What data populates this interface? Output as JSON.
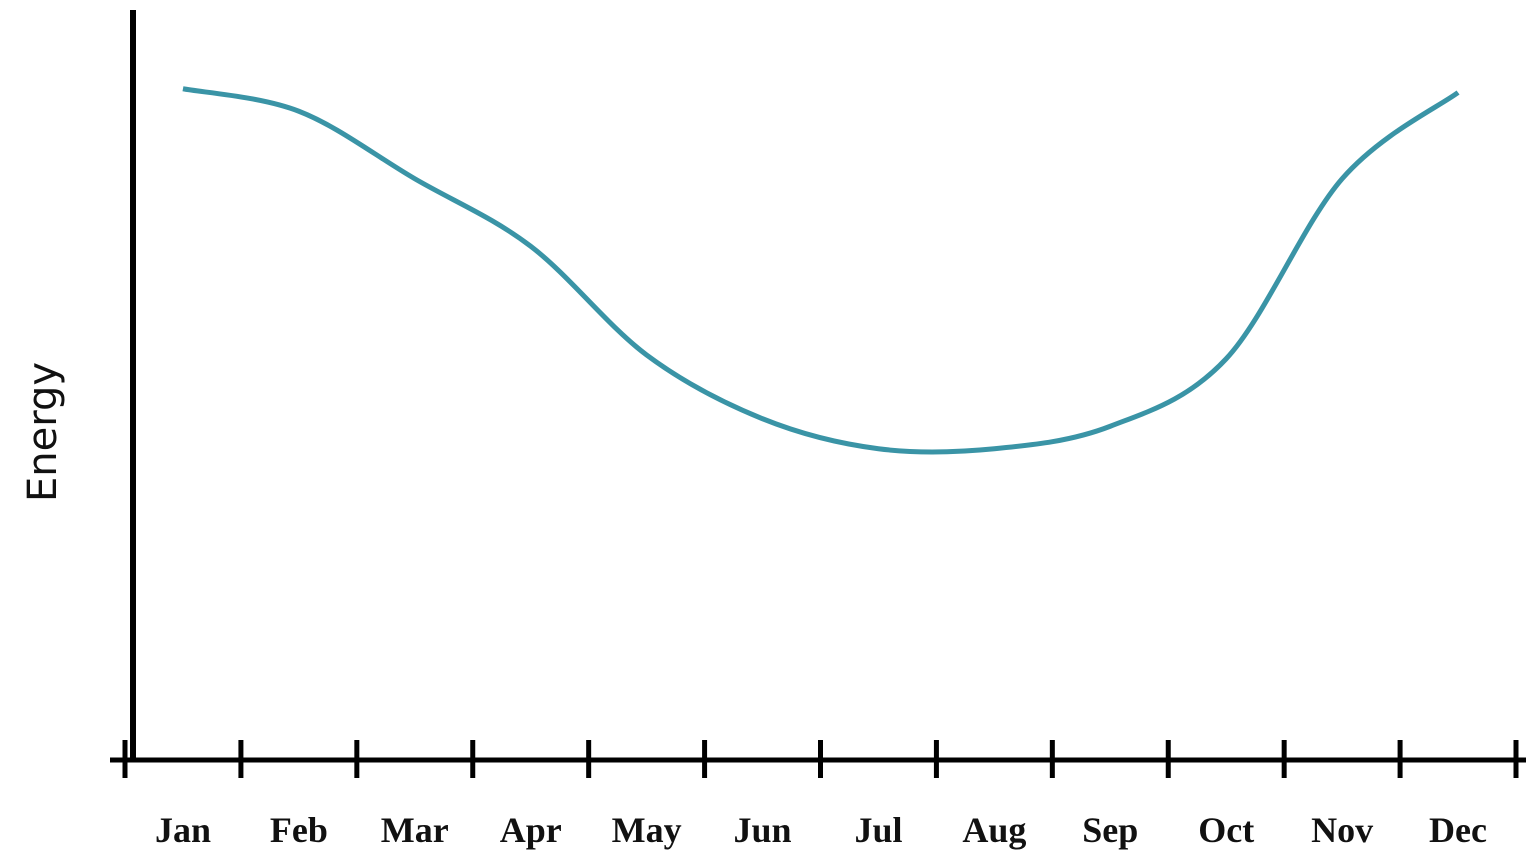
{
  "chart_data": {
    "type": "line",
    "y_label": "Energy",
    "categories": [
      "Jan",
      "Feb",
      "Mar",
      "Apr",
      "May",
      "Jun",
      "Jul",
      "Aug",
      "Sep",
      "Oct",
      "Nov",
      "Dec"
    ],
    "values": [
      89.5,
      86.5,
      77.5,
      68.5,
      54,
      45.5,
      41.5,
      41.5,
      44.5,
      53.5,
      77.5,
      89
    ],
    "color": "#3a94a6",
    "ylim": [
      0,
      100
    ]
  }
}
